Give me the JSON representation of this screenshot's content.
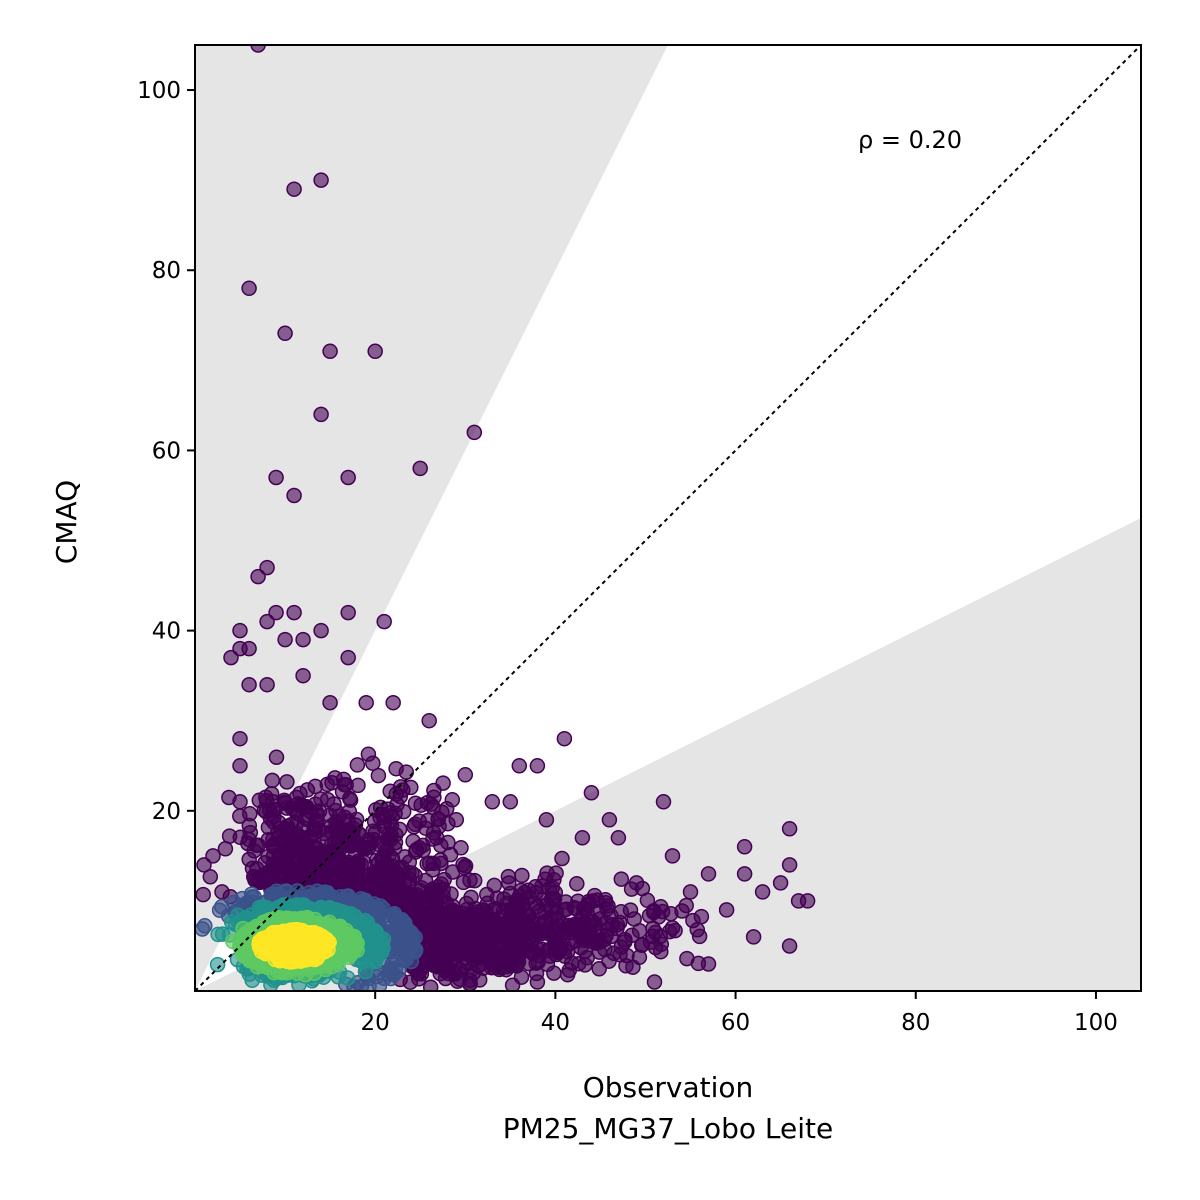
{
  "chart_data": {
    "type": "scatter",
    "title": "",
    "xlabel": "Observation",
    "xlabel_sub": "PM25_MG37_Lobo Leite",
    "ylabel": "CMAQ",
    "xlim": [
      0,
      105
    ],
    "ylim": [
      0,
      105
    ],
    "xticks": [
      20,
      40,
      60,
      80,
      100
    ],
    "yticks": [
      20,
      40,
      60,
      80,
      100
    ],
    "grid": false,
    "annotation": "ρ = 0.20",
    "reference_line": {
      "style": "dotted",
      "slope": 1,
      "color": "#000000"
    },
    "shaded_regions": [
      {
        "description": "above factor-of-2",
        "color": "#e5e5e5"
      },
      {
        "description": "below factor-of-2",
        "color": "#e5e5e5"
      }
    ],
    "point_colormap": "viridis",
    "point_colors": [
      "#440154",
      "#3b528b",
      "#21918c",
      "#5ec962",
      "#fde725"
    ],
    "outliers": [
      {
        "x": 7,
        "y": 105
      },
      {
        "x": 11,
        "y": 89
      },
      {
        "x": 14,
        "y": 90
      },
      {
        "x": 6,
        "y": 78
      },
      {
        "x": 10,
        "y": 73
      },
      {
        "x": 15,
        "y": 71
      },
      {
        "x": 20,
        "y": 71
      },
      {
        "x": 14,
        "y": 64
      },
      {
        "x": 31,
        "y": 62
      },
      {
        "x": 25,
        "y": 58
      },
      {
        "x": 9,
        "y": 57
      },
      {
        "x": 17,
        "y": 57
      },
      {
        "x": 11,
        "y": 55
      },
      {
        "x": 8,
        "y": 47
      },
      {
        "x": 7,
        "y": 46
      },
      {
        "x": 9,
        "y": 42
      },
      {
        "x": 11,
        "y": 42
      },
      {
        "x": 17,
        "y": 42
      },
      {
        "x": 21,
        "y": 41
      },
      {
        "x": 8,
        "y": 41
      },
      {
        "x": 14,
        "y": 40
      },
      {
        "x": 5,
        "y": 40
      },
      {
        "x": 10,
        "y": 39
      },
      {
        "x": 12,
        "y": 39
      },
      {
        "x": 5,
        "y": 38
      },
      {
        "x": 6,
        "y": 38
      },
      {
        "x": 17,
        "y": 37
      },
      {
        "x": 4,
        "y": 37
      },
      {
        "x": 6,
        "y": 34
      },
      {
        "x": 8,
        "y": 34
      },
      {
        "x": 12,
        "y": 35
      },
      {
        "x": 19,
        "y": 32
      },
      {
        "x": 22,
        "y": 32
      },
      {
        "x": 15,
        "y": 32
      },
      {
        "x": 41,
        "y": 28
      },
      {
        "x": 26,
        "y": 30
      },
      {
        "x": 36,
        "y": 25
      },
      {
        "x": 38,
        "y": 25
      },
      {
        "x": 44,
        "y": 22
      },
      {
        "x": 52,
        "y": 21
      },
      {
        "x": 35,
        "y": 21
      },
      {
        "x": 46,
        "y": 19
      },
      {
        "x": 47,
        "y": 17
      },
      {
        "x": 66,
        "y": 18
      },
      {
        "x": 61,
        "y": 16
      },
      {
        "x": 66,
        "y": 14
      },
      {
        "x": 53,
        "y": 15
      },
      {
        "x": 57,
        "y": 13
      },
      {
        "x": 61,
        "y": 13
      },
      {
        "x": 65,
        "y": 12
      },
      {
        "x": 67,
        "y": 10
      },
      {
        "x": 68,
        "y": 10
      },
      {
        "x": 63,
        "y": 11
      },
      {
        "x": 62,
        "y": 6
      },
      {
        "x": 66,
        "y": 5
      },
      {
        "x": 57,
        "y": 3
      },
      {
        "x": 51,
        "y": 1
      },
      {
        "x": 38,
        "y": 1
      },
      {
        "x": 41,
        "y": 9
      },
      {
        "x": 39,
        "y": 19
      },
      {
        "x": 5,
        "y": 28
      },
      {
        "x": 5,
        "y": 25
      },
      {
        "x": 5,
        "y": 21
      },
      {
        "x": 2,
        "y": 15
      },
      {
        "x": 1,
        "y": 14
      },
      {
        "x": 3,
        "y": 11
      },
      {
        "x": 30,
        "y": 24
      },
      {
        "x": 33,
        "y": 21
      },
      {
        "x": 29,
        "y": 19
      },
      {
        "x": 43,
        "y": 17
      },
      {
        "x": 55,
        "y": 11
      },
      {
        "x": 59,
        "y": 9
      },
      {
        "x": 49,
        "y": 12
      },
      {
        "x": 45,
        "y": 8
      },
      {
        "x": 53,
        "y": 7
      }
    ],
    "clusters": [
      {
        "cx": 18,
        "cy": 8,
        "sx": 9,
        "sy": 5,
        "n": 700
      },
      {
        "cx": 30,
        "cy": 6,
        "sx": 9,
        "sy": 3.5,
        "n": 400
      },
      {
        "cx": 12,
        "cy": 14,
        "sx": 5,
        "sy": 6,
        "n": 300
      },
      {
        "cx": 42,
        "cy": 7,
        "sx": 9,
        "sy": 4,
        "n": 220
      },
      {
        "cx": 20,
        "cy": 18,
        "sx": 7,
        "sy": 5,
        "n": 160
      },
      {
        "cx": 12,
        "cy": 6,
        "sx": 5,
        "sy": 3,
        "n": 500
      },
      {
        "cx": 10,
        "cy": 5,
        "sx": 3,
        "sy": 2,
        "n": 350
      }
    ]
  }
}
